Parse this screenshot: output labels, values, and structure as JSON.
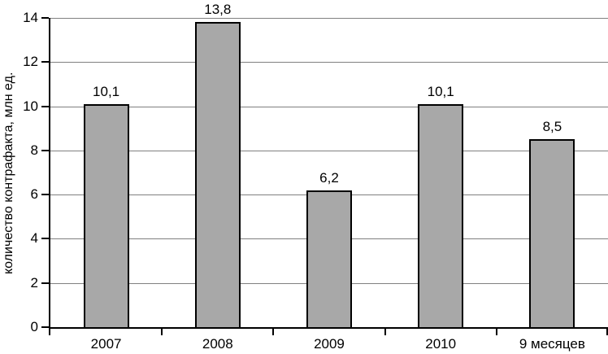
{
  "chart_data": {
    "type": "bar",
    "categories": [
      "2007",
      "2008",
      "2009",
      "2010",
      "9 месяцев"
    ],
    "values": [
      10.1,
      13.8,
      6.2,
      10.1,
      8.5
    ],
    "value_labels": [
      "10,1",
      "13,8",
      "6,2",
      "10,1",
      "8,5"
    ],
    "title": "",
    "xlabel": "",
    "ylabel": "количество  контрафакта, млн ед.",
    "ylim": [
      0,
      14
    ],
    "yticks": [
      0,
      2,
      4,
      6,
      8,
      10,
      12,
      14
    ],
    "ytick_labels": [
      "0",
      "2",
      "4",
      "6",
      "8",
      "10",
      "12",
      "14"
    ],
    "grid": "horizontal",
    "legend_position": "none",
    "colors": {
      "bar_fill": "#a8a8a8",
      "bar_border": "#000000",
      "gridline": "#808080",
      "axis": "#000000",
      "text": "#000000",
      "background": "#ffffff"
    }
  }
}
